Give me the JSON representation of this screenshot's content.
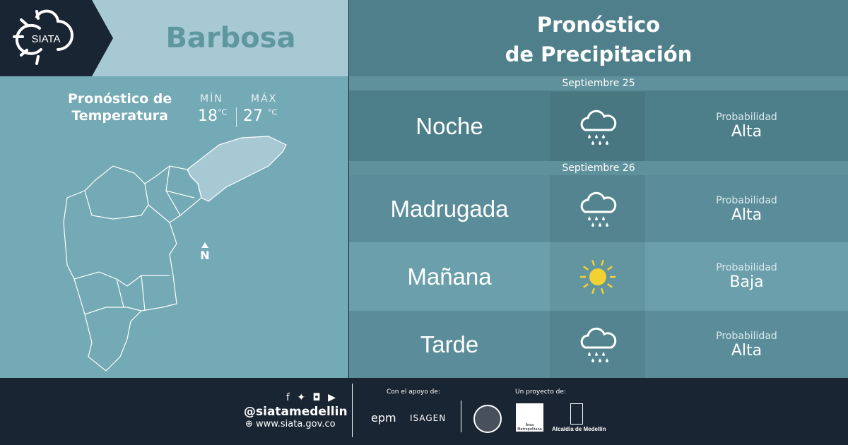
{
  "logo": {
    "text": "SIATA"
  },
  "city": "Barbosa",
  "temperature": {
    "title_line1": "Pronóstico de",
    "title_line2": "Temperatura",
    "min_label": "MÍN",
    "min_value": "18",
    "max_label": "MÁX",
    "max_value": "27",
    "unit": "°C"
  },
  "compass": "N",
  "precip": {
    "title_line1": "Pronóstico",
    "title_line2": "de Precipitación",
    "dates": [
      "Septiembre 25",
      "Septiembre 26"
    ],
    "rows": [
      {
        "period": "Noche",
        "icon": "rain-cloud-icon",
        "prob_label": "Probabilidad",
        "prob": "Alta"
      },
      {
        "period": "Madrugada",
        "icon": "rain-cloud-icon",
        "prob_label": "Probabilidad",
        "prob": "Alta"
      },
      {
        "period": "Mañana",
        "icon": "sun-icon",
        "prob_label": "Probabilidad",
        "prob": "Baja"
      },
      {
        "period": "Tarde",
        "icon": "rain-cloud-icon",
        "prob_label": "Probabilidad",
        "prob": "Alta"
      }
    ]
  },
  "footer": {
    "handle": "@siatamedellin",
    "website": "www.siata.gov.co",
    "support_label": "Con el apoyo de:",
    "support_logos": [
      "epm",
      "ISAGEN"
    ],
    "project_label": "Un proyecto de:",
    "project_logos": [
      "Área Metropolitana Valle de Aburrá",
      "Alcaldía de Medellín"
    ]
  },
  "colors": {
    "dark": "#1a2533",
    "sun": "#f2d230"
  }
}
